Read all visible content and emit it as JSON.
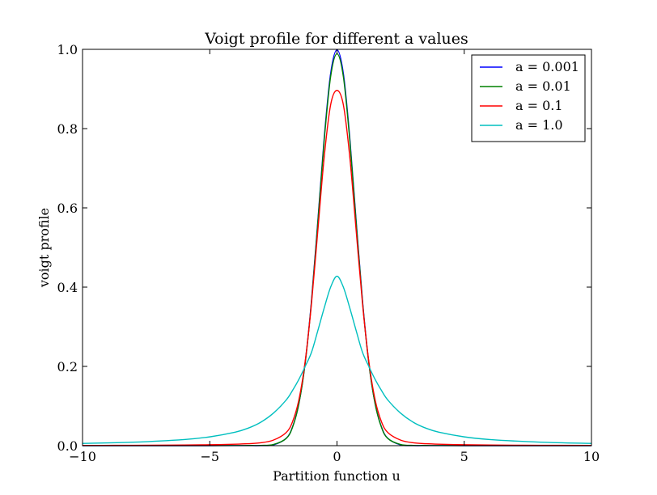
{
  "chart_data": {
    "type": "line",
    "title": "Voigt profile for different a values",
    "xlabel": "Partition function u",
    "ylabel": "voigt profile",
    "xlim": [
      -10,
      10
    ],
    "ylim": [
      0,
      1.0
    ],
    "xticks": [
      -10,
      -5,
      0,
      5,
      10
    ],
    "xtick_labels": [
      "−10",
      "−5",
      "0",
      "5",
      "10"
    ],
    "yticks": [
      0.0,
      0.2,
      0.4,
      0.6,
      0.8,
      1.0
    ],
    "ytick_labels": [
      "0.0",
      "0.2",
      "0.4",
      "0.6",
      "0.8",
      "1.0"
    ],
    "grid": false,
    "legend_position": "top-right",
    "x": [
      -10,
      -8,
      -6,
      -5,
      -4,
      -3.5,
      -3,
      -2.5,
      -2,
      -1.75,
      -1.5,
      -1.25,
      -1,
      -0.75,
      -0.5,
      -0.25,
      0,
      0.25,
      0.5,
      0.75,
      1,
      1.25,
      1.5,
      1.75,
      2,
      2.5,
      3,
      3.5,
      4,
      5,
      6,
      8,
      10
    ],
    "series": [
      {
        "name": "a = 0.001",
        "color": "#0000ff",
        "values": [
          0.0,
          0.0,
          0.0,
          0.0,
          0.0001,
          0.0001,
          0.0001,
          0.002,
          0.0184,
          0.0469,
          0.1055,
          0.2097,
          0.368,
          0.5698,
          0.7789,
          0.9394,
          0.9989,
          0.9394,
          0.7789,
          0.5698,
          0.368,
          0.2097,
          0.1055,
          0.0469,
          0.0184,
          0.002,
          0.0001,
          0.0001,
          0.0001,
          0.0,
          0.0,
          0.0,
          0.0
        ]
      },
      {
        "name": "a = 0.01",
        "color": "#008000",
        "values": [
          0.0001,
          0.0001,
          0.0002,
          0.0002,
          0.0004,
          0.0005,
          0.0007,
          0.003,
          0.018,
          0.046,
          0.105,
          0.208,
          0.365,
          0.565,
          0.772,
          0.931,
          0.9888,
          0.931,
          0.772,
          0.565,
          0.365,
          0.208,
          0.105,
          0.046,
          0.018,
          0.003,
          0.0007,
          0.0005,
          0.0004,
          0.0002,
          0.0002,
          0.0001,
          0.0001
        ]
      },
      {
        "name": "a = 0.1",
        "color": "#ff0000",
        "values": [
          0.0006,
          0.0009,
          0.0016,
          0.0023,
          0.0037,
          0.0049,
          0.0072,
          0.014,
          0.033,
          0.06,
          0.115,
          0.213,
          0.36,
          0.545,
          0.73,
          0.86,
          0.8964,
          0.86,
          0.73,
          0.545,
          0.36,
          0.213,
          0.115,
          0.06,
          0.033,
          0.014,
          0.0072,
          0.0049,
          0.0037,
          0.0023,
          0.0016,
          0.0009,
          0.0006
        ]
      },
      {
        "name": "a = 1.0",
        "color": "#00bfbf",
        "values": [
          0.0056,
          0.0088,
          0.0155,
          0.0222,
          0.034,
          0.044,
          0.059,
          0.082,
          0.115,
          0.139,
          0.167,
          0.2,
          0.236,
          0.291,
          0.348,
          0.4,
          0.4276,
          0.4,
          0.348,
          0.291,
          0.236,
          0.2,
          0.167,
          0.139,
          0.115,
          0.082,
          0.059,
          0.044,
          0.034,
          0.0222,
          0.0155,
          0.0088,
          0.0056
        ]
      }
    ]
  }
}
